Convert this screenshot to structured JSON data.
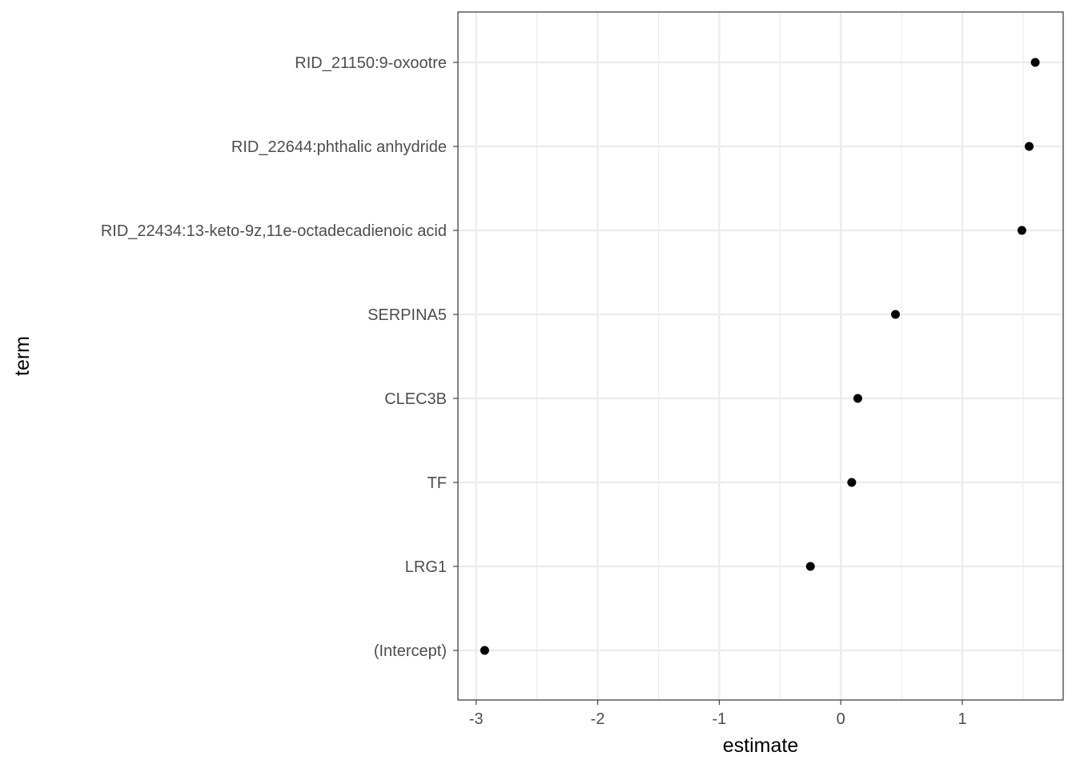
{
  "chart_data": {
    "type": "scatter",
    "title": "",
    "xlabel": "estimate",
    "ylabel": "term",
    "xlim": [
      -3.15,
      1.83
    ],
    "x_ticks": [
      -3,
      -2,
      -1,
      0,
      1
    ],
    "x_tick_labels": [
      "-3",
      "-2",
      "-1",
      "0",
      "1"
    ],
    "categories": [
      "(Intercept)",
      "LRG1",
      "TF",
      "CLEC3B",
      "SERPINA5",
      "RID_22434:13-keto-9z,11e-octadecadienoic acid",
      "RID_22644:phthalic anhydride",
      "RID_21150:9-oxootre"
    ],
    "series": [
      {
        "values": [
          -2.93,
          -0.25,
          0.09,
          0.14,
          0.45,
          1.49,
          1.55,
          1.6
        ]
      }
    ],
    "grid": true,
    "legend": "none",
    "colors": {
      "point": "#000000",
      "grid": "#ebebeb",
      "panel_border": "#333333",
      "tick_text": "#4d4d4d"
    }
  }
}
